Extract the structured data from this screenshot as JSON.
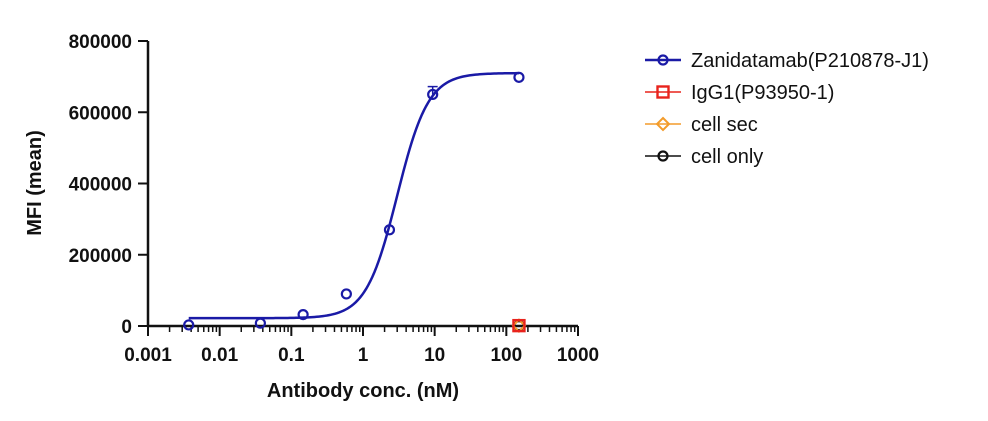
{
  "chart_data": {
    "type": "scatter",
    "xlabel": "Antibody conc. (nM)",
    "ylabel": "MFI (mean)",
    "x_scale": "log",
    "xlim": [
      0.001,
      1000
    ],
    "ylim": [
      0,
      800000
    ],
    "x_ticks": [
      "0.001",
      "0.01",
      "0.1",
      "1",
      "10",
      "100",
      "1000"
    ],
    "y_ticks": [
      "0",
      "200000",
      "400000",
      "600000",
      "800000"
    ],
    "grid": false,
    "legend_position": "right",
    "series": [
      {
        "name": "Zanidatamab(P210878-J1)",
        "marker": "circle",
        "color": "#1a1aa6",
        "x": [
          0.0037,
          0.037,
          0.146,
          0.586,
          2.34,
          9.38,
          150
        ],
        "y": [
          3000,
          8000,
          32000,
          90000,
          270000,
          650000,
          698000
        ],
        "error": [
          0,
          0,
          0,
          0,
          0,
          22000,
          0
        ],
        "fit": {
          "type": "4PL",
          "bottom": 22000,
          "top": 710000,
          "ec50": 3.0,
          "hill": 2.0
        }
      },
      {
        "name": "IgG1(P93950-1)",
        "marker": "square",
        "color": "#e8231c",
        "x": [
          150
        ],
        "y": [
          1000
        ]
      },
      {
        "name": "cell sec",
        "marker": "diamond",
        "color": "#f39c2b",
        "x": [
          150
        ],
        "y": [
          1000
        ]
      },
      {
        "name": "cell only",
        "marker": "circle",
        "color": "#111111",
        "x": [
          150
        ],
        "y": [
          1000
        ]
      }
    ]
  }
}
